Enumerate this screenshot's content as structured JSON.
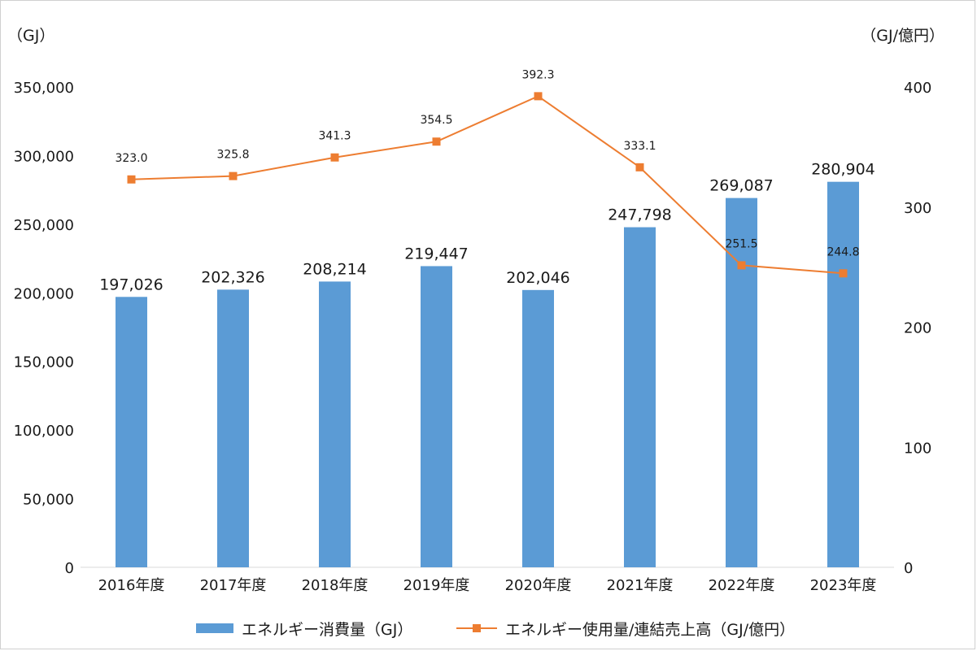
{
  "chart_data": {
    "type": "bar",
    "categories": [
      "2016年度",
      "2017年度",
      "2018年度",
      "2019年度",
      "2020年度",
      "2021年度",
      "2022年度",
      "2023年度"
    ],
    "series": [
      {
        "name": "エネルギー消費量（GJ）",
        "type": "bar",
        "axis": "left",
        "color": "#5b9bd5",
        "values": [
          197026,
          202326,
          208214,
          219447,
          202046,
          247798,
          269087,
          280904
        ],
        "labels": [
          "197,026",
          "202,326",
          "208,214",
          "219,447",
          "202,046",
          "247,798",
          "269,087",
          "280,904"
        ]
      },
      {
        "name": "エネルギー使用量/連結売上高（GJ/億円）",
        "type": "line",
        "axis": "right",
        "color": "#ed7d31",
        "marker": "square",
        "values": [
          323.0,
          325.8,
          341.3,
          354.5,
          392.3,
          333.1,
          251.5,
          244.8
        ],
        "labels": [
          "323.0",
          "325.8",
          "341.3",
          "354.5",
          "392.3",
          "333.1",
          "251.5",
          "244.8"
        ]
      }
    ],
    "left_axis": {
      "unit": "（GJ）",
      "ylim": [
        0,
        350000
      ],
      "ticks": [
        0,
        50000,
        100000,
        150000,
        200000,
        250000,
        300000,
        350000
      ],
      "tick_labels": [
        "0",
        "50,000",
        "100,000",
        "150,000",
        "200,000",
        "250,000",
        "300,000",
        "350,000"
      ]
    },
    "right_axis": {
      "unit": "（GJ/億円）",
      "ylim": [
        0,
        400
      ],
      "ticks": [
        0,
        100,
        200,
        300,
        400
      ],
      "tick_labels": [
        "0",
        "100",
        "200",
        "300",
        "400"
      ]
    },
    "legend_position": "bottom",
    "grid": false
  }
}
